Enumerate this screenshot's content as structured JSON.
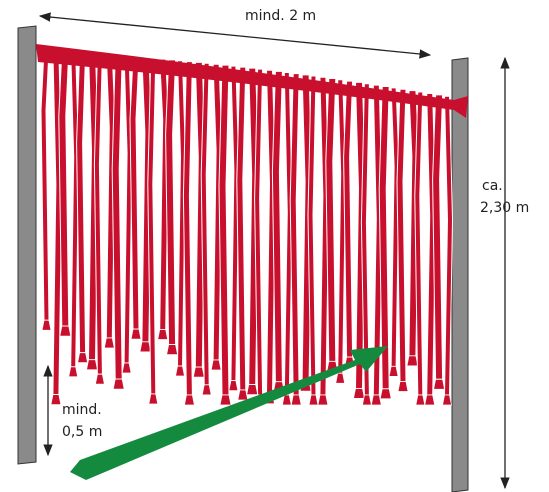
{
  "labels": {
    "width": "mind. 2 m",
    "heightPrefix": "ca.",
    "height": "2,30 m",
    "clearancePrefix": "mind.",
    "clearance": "0,5 m"
  }
}
